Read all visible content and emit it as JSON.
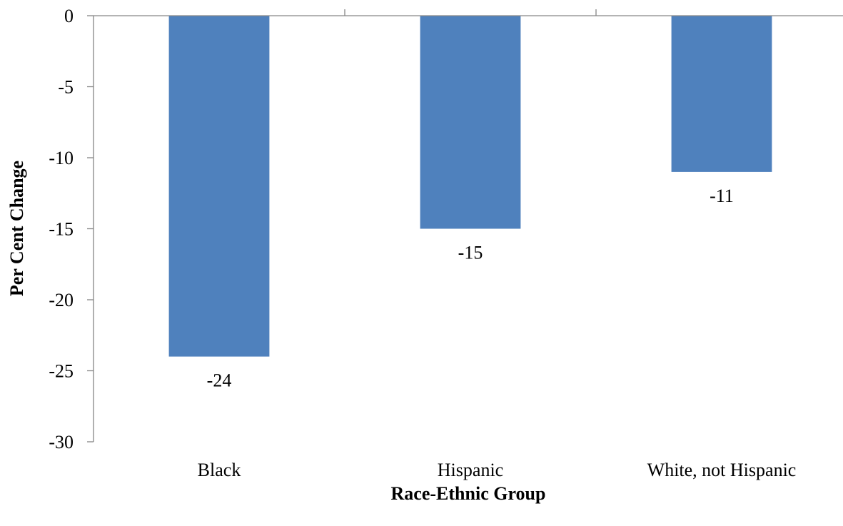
{
  "chart_data": {
    "type": "bar",
    "title": "",
    "xlabel": "Race-Ethnic Group",
    "ylabel": "Per Cent Change",
    "categories": [
      "Black",
      "Hispanic",
      "White, not Hispanic"
    ],
    "values": [
      -24,
      -15,
      -11
    ],
    "data_labels": [
      "-24",
      "-15",
      "-11"
    ],
    "ylim": [
      -30,
      0
    ],
    "yticks": [
      0,
      -5,
      -10,
      -15,
      -20,
      -25,
      -30
    ],
    "grid": false,
    "legend": "none",
    "bar_color": "#4f81bd"
  }
}
